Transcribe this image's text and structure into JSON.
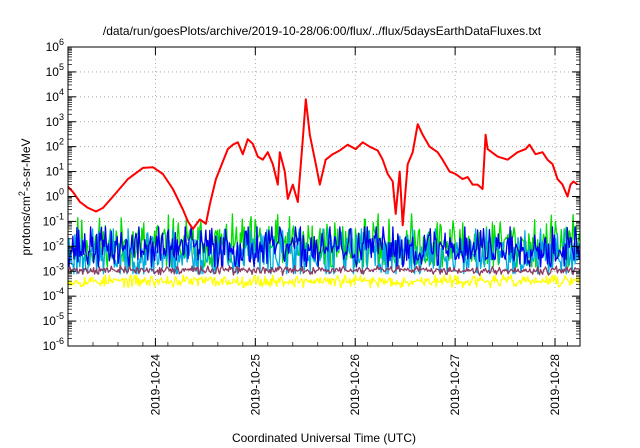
{
  "chart_data": {
    "type": "line",
    "title": "/data/run/goesPlots/archive/2019-10-28/06:00/flux/../flux/5daysEarthDataFluxes.txt",
    "xlabel": "Coordinated Universal Time (UTC)",
    "ylabel_parts": [
      "protons/cm",
      "2",
      "-s-sr-MeV"
    ],
    "x_ticks": [
      "2019-10-24",
      "2019-10-25",
      "2019-10-26",
      "2019-10-27",
      "2019-10-28"
    ],
    "x_range": [
      "2019-10-23T03:00",
      "2019-10-28T06:00"
    ],
    "y_scale": "log",
    "y_range_exp": [
      -6,
      6
    ],
    "y_tick_exponents": [
      -6,
      -5,
      -4,
      -3,
      -2,
      -1,
      0,
      1,
      2,
      3,
      4,
      5,
      6
    ],
    "grid": true,
    "series": [
      {
        "color": "#ff0000",
        "style": "curve",
        "points": [
          [
            0,
            2.5
          ],
          [
            0.05,
            1.5
          ],
          [
            0.12,
            0.6
          ],
          [
            0.2,
            0.35
          ],
          [
            0.28,
            0.25
          ],
          [
            0.35,
            0.35
          ],
          [
            0.45,
            1
          ],
          [
            0.6,
            5
          ],
          [
            0.75,
            14
          ],
          [
            0.85,
            15
          ],
          [
            0.95,
            8
          ],
          [
            1.05,
            2
          ],
          [
            1.15,
            0.3
          ],
          [
            1.2,
            0.1
          ],
          [
            1.25,
            0.05
          ],
          [
            1.32,
            0.12
          ],
          [
            1.38,
            0.08
          ],
          [
            1.42,
            0.5
          ],
          [
            1.48,
            5
          ],
          [
            1.55,
            25
          ],
          [
            1.6,
            80
          ],
          [
            1.65,
            120
          ],
          [
            1.7,
            150
          ],
          [
            1.75,
            50
          ],
          [
            1.8,
            200
          ],
          [
            1.85,
            130
          ],
          [
            1.9,
            40
          ],
          [
            1.95,
            30
          ],
          [
            2.0,
            60
          ],
          [
            2.05,
            20
          ],
          [
            2.1,
            3
          ],
          [
            2.12,
            60
          ],
          [
            2.17,
            10
          ],
          [
            2.2,
            0.8
          ],
          [
            2.25,
            3
          ],
          [
            2.3,
            0.6
          ],
          [
            2.35,
            200
          ],
          [
            2.38,
            8000
          ],
          [
            2.42,
            300
          ],
          [
            2.48,
            20
          ],
          [
            2.52,
            3
          ],
          [
            2.58,
            30
          ],
          [
            2.65,
            50
          ],
          [
            2.72,
            70
          ],
          [
            2.8,
            120
          ],
          [
            2.88,
            80
          ],
          [
            2.95,
            150
          ],
          [
            3.02,
            100
          ],
          [
            3.1,
            70
          ],
          [
            3.15,
            30
          ],
          [
            3.2,
            8
          ],
          [
            3.25,
            4
          ],
          [
            3.28,
            0.2
          ],
          [
            3.32,
            10
          ],
          [
            3.35,
            0.07
          ],
          [
            3.4,
            20
          ],
          [
            3.45,
            60
          ],
          [
            3.5,
            800
          ],
          [
            3.55,
            300
          ],
          [
            3.62,
            100
          ],
          [
            3.7,
            60
          ],
          [
            3.75,
            30
          ],
          [
            3.82,
            10
          ],
          [
            3.88,
            8
          ],
          [
            3.95,
            5
          ],
          [
            4.0,
            6
          ],
          [
            4.05,
            3
          ],
          [
            4.1,
            3
          ],
          [
            4.15,
            2
          ],
          [
            4.18,
            300
          ],
          [
            4.2,
            80
          ],
          [
            4.3,
            40
          ],
          [
            4.4,
            30
          ],
          [
            4.5,
            60
          ],
          [
            4.58,
            80
          ],
          [
            4.62,
            120
          ],
          [
            4.68,
            50
          ],
          [
            4.75,
            60
          ],
          [
            4.8,
            30
          ],
          [
            4.85,
            20
          ],
          [
            4.9,
            5
          ],
          [
            4.95,
            3
          ],
          [
            5.0,
            1
          ],
          [
            5.03,
            3
          ],
          [
            5.06,
            4
          ],
          [
            5.1,
            3
          ]
        ]
      },
      {
        "color": "#00dd00",
        "style": "noise",
        "seed": 11,
        "median": 0.011,
        "spread_dex": 0.55,
        "min": 0.0015,
        "max": 0.2
      },
      {
        "color": "#00aadd",
        "style": "noise",
        "seed": 23,
        "median": 0.005,
        "spread_dex": 0.55,
        "min": 0.0008,
        "max": 0.05
      },
      {
        "color": "#0000ee",
        "style": "noise",
        "seed": 37,
        "median": 0.009,
        "spread_dex": 0.45,
        "min": 0.0015,
        "max": 0.06
      },
      {
        "color": "#ffff00",
        "style": "noise",
        "seed": 53,
        "median": 0.0004,
        "spread_dex": 0.12,
        "min": 0.00022,
        "max": 0.0007
      },
      {
        "color": "#8b3a62",
        "style": "noise",
        "seed": 71,
        "median": 0.0011,
        "spread_dex": 0.08,
        "min": 0.0006,
        "max": 0.0017
      }
    ]
  }
}
